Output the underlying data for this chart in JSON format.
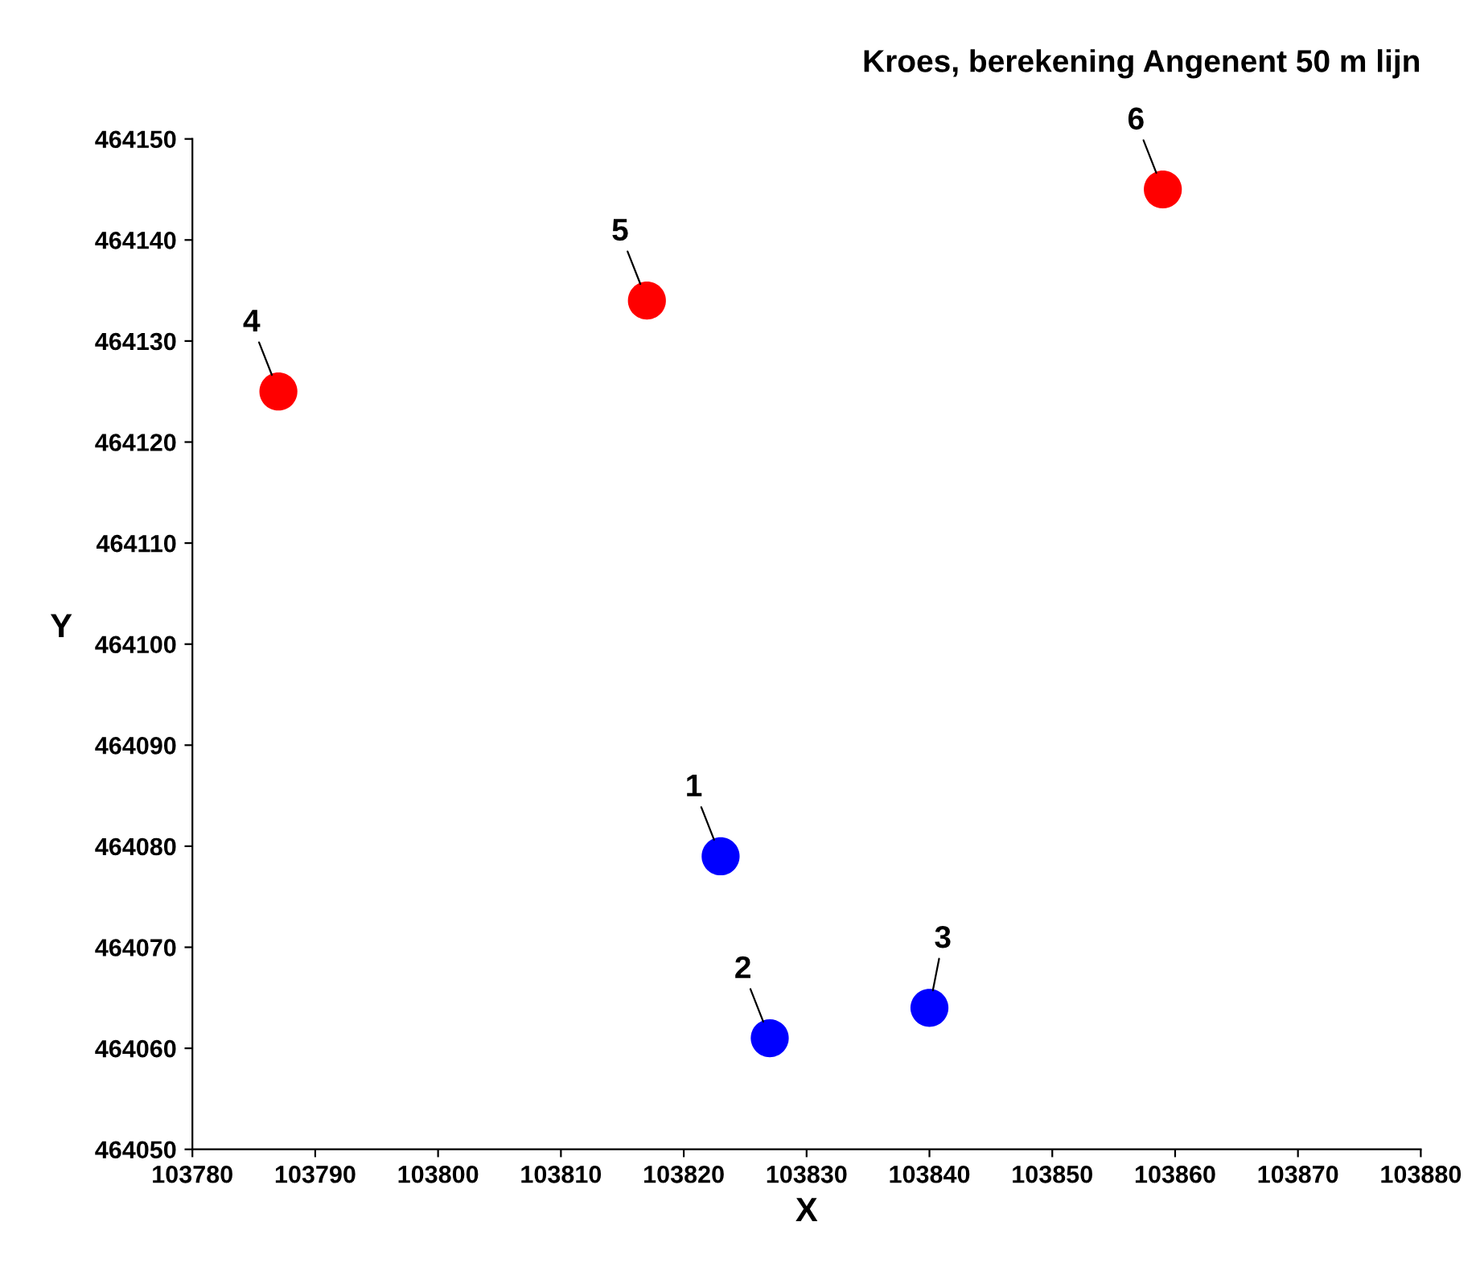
{
  "chart_data": {
    "type": "scatter",
    "title": "Kroes, berekening Angenent 50 m lijn",
    "xlabel": "X",
    "ylabel": "Y",
    "series": [
      {
        "color": "#0000ff",
        "x": [
          103823,
          103827,
          103840
        ],
        "values": [
          464079,
          464061,
          464064
        ]
      },
      {
        "color": "#ff0000",
        "x": [
          103787,
          103817,
          103859
        ],
        "values": [
          464125,
          464134,
          464145
        ]
      }
    ],
    "annotations": [
      {
        "text": "1",
        "x": 103823,
        "y": 464079
      },
      {
        "text": "2",
        "x": 103827,
        "y": 464061
      },
      {
        "text": "3",
        "x": 103840,
        "y": 464064
      },
      {
        "text": "4",
        "x": 103787,
        "y": 464125
      },
      {
        "text": "5",
        "x": 103817,
        "y": 464134
      },
      {
        "text": "6",
        "x": 103859,
        "y": 464145
      }
    ],
    "xlim": [
      103780,
      103880
    ],
    "xticks": [
      103780,
      103790,
      103800,
      103810,
      103820,
      103830,
      103840,
      103850,
      103860,
      103870,
      103880
    ],
    "ylim": [
      464050,
      464150
    ],
    "yticks": [
      464050,
      464060,
      464070,
      464080,
      464090,
      464100,
      464110,
      464120,
      464130,
      464140,
      464150
    ],
    "grid": false,
    "legend": false,
    "marker": "circle"
  }
}
